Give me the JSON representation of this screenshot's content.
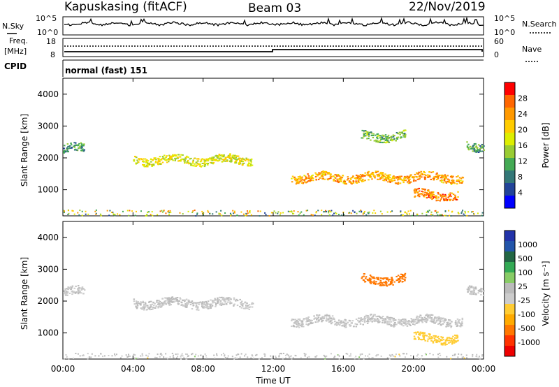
{
  "header": {
    "station": "Kapuskasing (fitACF)",
    "beam": "Beam 03",
    "date": "22/Nov/2019"
  },
  "noise_panel": {
    "left_label": "N.Sky",
    "right_label": "N.Search",
    "tick_top": "10^5",
    "tick_bottom": "10^0",
    "tick_top_right": "10^5",
    "tick_bottom_right": "10^0"
  },
  "freq_panel": {
    "left_label_line1": "Freq.",
    "left_label_line2": "[MHz]",
    "right_label": "Nave",
    "left_ticks": [
      "18",
      "8"
    ],
    "right_ticks": [
      "60",
      "0"
    ]
  },
  "cpid": {
    "label": "CPID",
    "value": "normal (fast) 151"
  },
  "power_panel": {
    "ylabel": "Slant Range [km]",
    "colorbar_label": "Power [dB]",
    "colorbar_ticks": [
      "28",
      "24",
      "20",
      "16",
      "12",
      "8",
      "4"
    ],
    "colors": [
      "#ff0000",
      "#ff6600",
      "#ff9900",
      "#ffcc00",
      "#ddee00",
      "#99cc33",
      "#44aa55",
      "#337777",
      "#224499",
      "#0000ff"
    ]
  },
  "velocity_panel": {
    "ylabel": "Slant Range [km]",
    "colorbar_label": "Velocity [m s⁻¹]",
    "colorbar_ticks": [
      "1000",
      "500",
      "100",
      "25",
      "-25",
      "-100",
      "-500",
      "-1000"
    ],
    "colors": [
      "#2233aa",
      "#2255aa",
      "#226644",
      "#33aa55",
      "#88cc66",
      "#bbbbbb",
      "#cccccc",
      "#ffcc33",
      "#ffaa00",
      "#ff7700",
      "#ff3300",
      "#ee0000"
    ]
  },
  "xaxis": {
    "label": "Time UT",
    "ticks": [
      "00:00",
      "04:00",
      "08:00",
      "12:00",
      "16:00",
      "20:00",
      "00:00"
    ]
  },
  "chart_data": {
    "type": "heatmap",
    "xlabel": "Time UT",
    "ylabel": "Slant Range [km]",
    "x_range_hours": [
      0,
      24
    ],
    "ylim": [
      180,
      4500
    ],
    "y_ticks": [
      1000,
      2000,
      3000,
      4000
    ],
    "power_range_db": [
      0,
      32
    ],
    "velocity_range": [
      -1000,
      1000
    ],
    "echo_regions": [
      {
        "start_hour": 0.0,
        "end_hour": 1.2,
        "range_center_km": 2300,
        "power_db": 10,
        "velocity": 0
      },
      {
        "start_hour": 4.0,
        "end_hour": 10.8,
        "range_center_km": 1950,
        "power_db": 18,
        "velocity": 0
      },
      {
        "start_hour": 13.0,
        "end_hour": 22.8,
        "range_center_km": 1400,
        "power_db": 24,
        "velocity": 0
      },
      {
        "start_hour": 20.0,
        "end_hour": 22.5,
        "range_center_km": 850,
        "power_db": 26,
        "velocity": -300
      },
      {
        "start_hour": 17.0,
        "end_hour": 19.5,
        "range_center_km": 2700,
        "power_db": 12,
        "velocity": -600
      },
      {
        "start_hour": 23.0,
        "end_hour": 24.0,
        "range_center_km": 2400,
        "power_db": 10,
        "velocity": 0
      }
    ]
  }
}
